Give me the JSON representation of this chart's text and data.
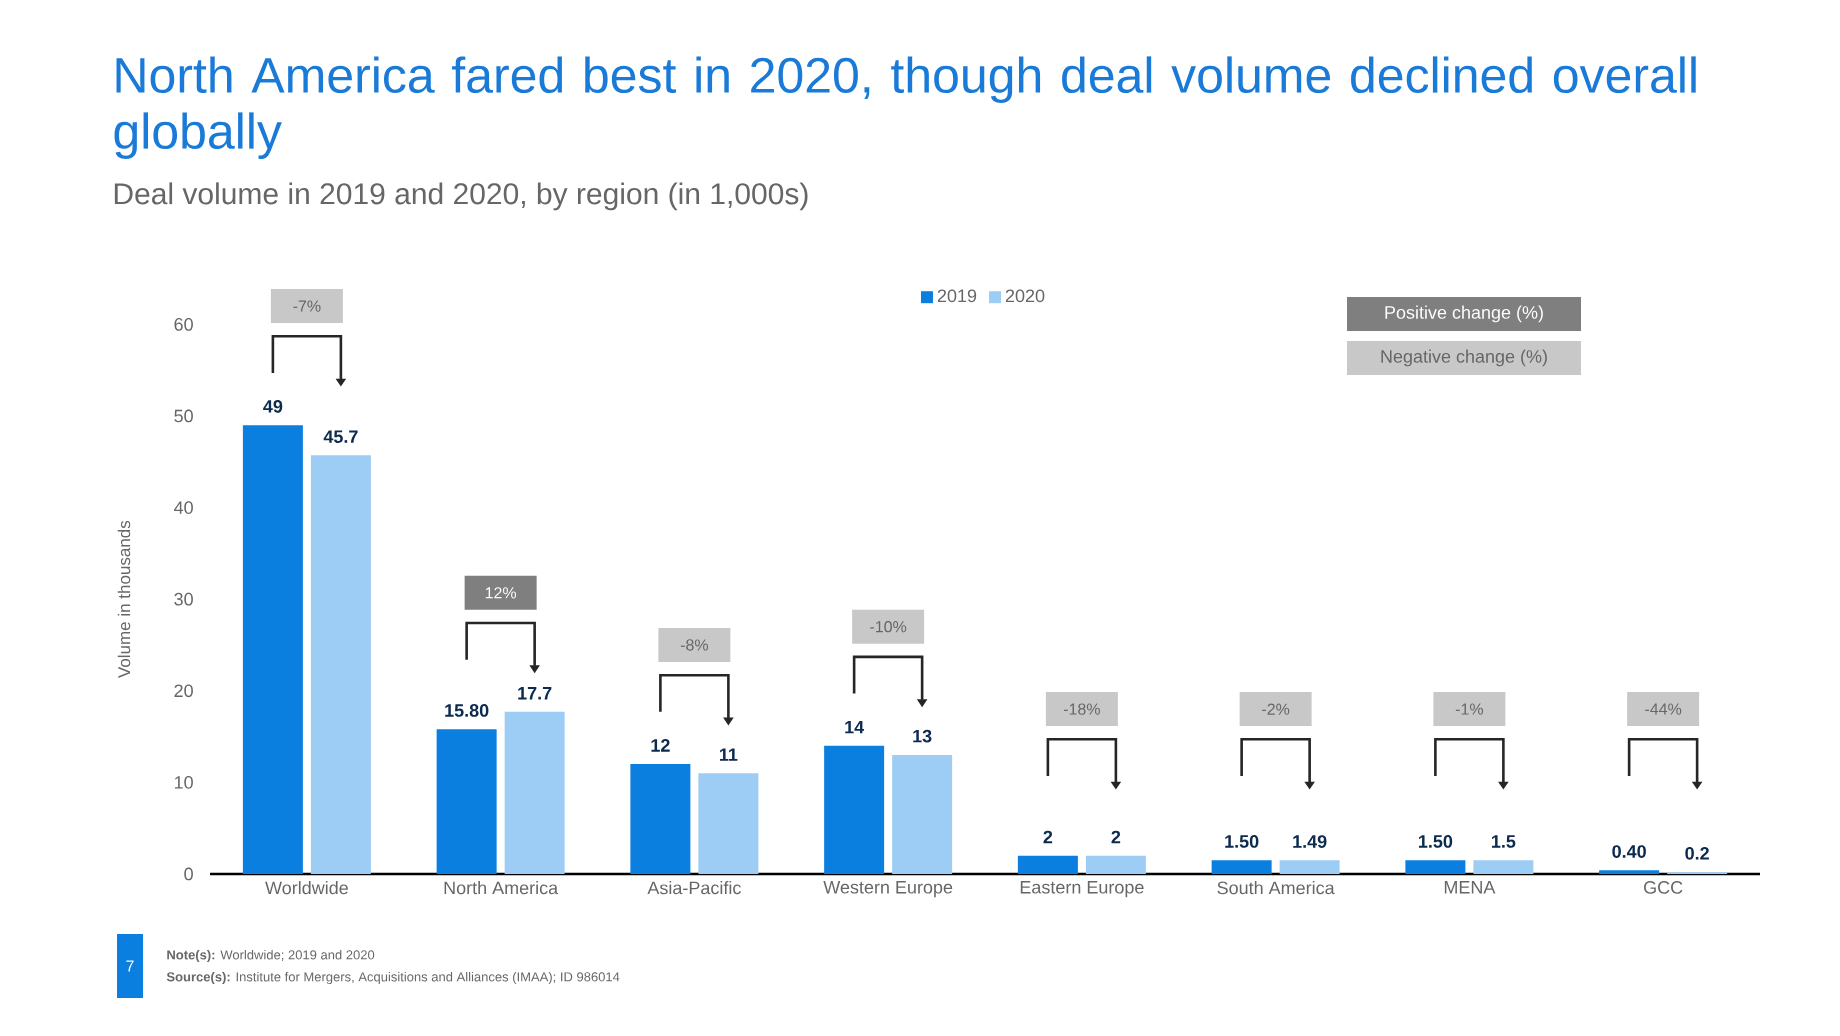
{
  "chart_data": {
    "type": "bar",
    "title": "North America fared best in 2020, though deal volume declined overall globally",
    "subtitle": "Deal volume in 2019 and 2020, by region (in 1,000s)",
    "ylabel": "Volume in thousands",
    "categories": [
      "Worldwide",
      "North America",
      "Asia-Pacific",
      "Western Europe",
      "Eastern Europe",
      "South America",
      "MENA",
      "GCC"
    ],
    "series": [
      {
        "name": "2019",
        "color": "#0a7fe0",
        "values": [
          49,
          15.8,
          12,
          14,
          2,
          1.5,
          1.5,
          0.4
        ],
        "value_labels": [
          "49",
          "15.80",
          "12",
          "14",
          "2",
          "1.50",
          "1.50",
          "0.40"
        ]
      },
      {
        "name": "2020",
        "color": "#9dcdf5",
        "values": [
          45.7,
          17.7,
          11,
          13,
          2,
          1.49,
          1.5,
          0.2
        ],
        "value_labels": [
          "45.7",
          "17.7",
          "11",
          "13",
          "2",
          "1.49",
          "1.5",
          "0.2"
        ]
      }
    ],
    "ylim": [
      0,
      60
    ],
    "yticks": [
      0,
      10,
      20,
      30,
      40,
      50,
      60
    ],
    "legend": "top",
    "annotations": [
      "-7%",
      "12%",
      "-8%",
      "-10%",
      "-18%",
      "-2%",
      "-1%",
      "-44%",
      "Positive change (%)",
      "Negative change (%)",
      "**Note(s):** Worldwide; 2019 and 2020",
      "**Source(s):** Institute for Mergers, Acquisitions and Alliances (IMAA); ID 986014",
      "7"
    ]
  }
}
